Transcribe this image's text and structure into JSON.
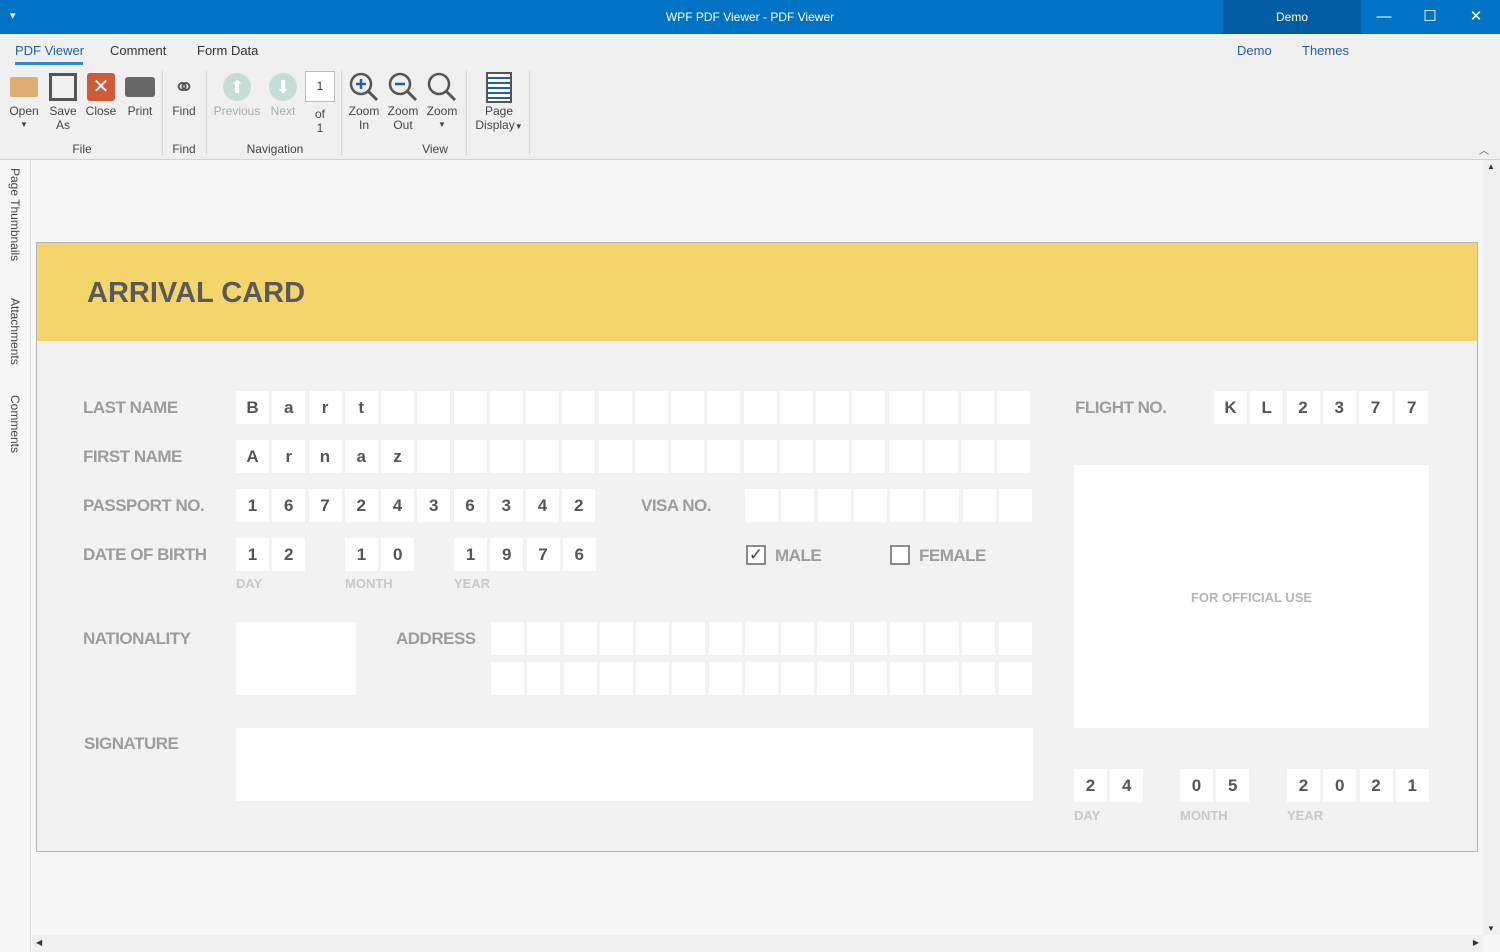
{
  "window": {
    "title": "WPF PDF Viewer - PDF Viewer",
    "badge": "Demo",
    "minimize": "—",
    "maximize": "☐",
    "close": "✕",
    "menu_glyph": "▾"
  },
  "ribbon": {
    "tabs": [
      {
        "label": "PDF Viewer",
        "active": true
      },
      {
        "label": "Comment"
      },
      {
        "label": "Form Data"
      }
    ],
    "right_links": [
      "Demo",
      "Themes"
    ],
    "buttons": {
      "open": "Open",
      "save_as_1": "Save",
      "save_as_2": "As",
      "close": "Close",
      "print": "Print",
      "find": "Find",
      "previous": "Previous",
      "next": "Next",
      "page_value": "1",
      "of_1": "of",
      "of_2": "1",
      "zoom_in_1": "Zoom",
      "zoom_in_2": "In",
      "zoom_out_1": "Zoom",
      "zoom_out_2": "Out",
      "zoom": "Zoom",
      "page_display_1": "Page",
      "page_display_2": "Display"
    },
    "groups": {
      "file": "File",
      "find": "Find",
      "navigation": "Navigation",
      "view": "View"
    }
  },
  "sidebar": {
    "tabs": [
      "Page Thumbnails",
      "Attachments",
      "Comments"
    ]
  },
  "form": {
    "title": "ARRIVAL CARD",
    "labels": {
      "last_name": "LAST NAME",
      "first_name": "FIRST NAME",
      "passport": "PASSPORT NO.",
      "visa": "VISA NO.",
      "dob": "DATE OF BIRTH",
      "male": "MALE",
      "female": "FEMALE",
      "nationality": "NATIONALITY",
      "address": "ADDRESS",
      "signature": "SIGNATURE",
      "flight": "FLIGHT NO.",
      "official": "FOR OFFICIAL USE",
      "day": "DAY",
      "month": "MONTH",
      "year": "YEAR"
    },
    "last_name": [
      "B",
      "a",
      "r",
      "t",
      "",
      "",
      "",
      "",
      "",
      "",
      "",
      "",
      "",
      "",
      "",
      "",
      "",
      "",
      "",
      "",
      "",
      ""
    ],
    "first_name": [
      "A",
      "r",
      "n",
      "a",
      "z",
      "",
      "",
      "",
      "",
      "",
      "",
      "",
      "",
      "",
      "",
      "",
      "",
      "",
      "",
      "",
      "",
      ""
    ],
    "passport": [
      "1",
      "6",
      "7",
      "2",
      "4",
      "3",
      "6",
      "3",
      "4",
      "2"
    ],
    "visa": [
      "",
      "",
      "",
      "",
      "",
      "",
      "",
      ""
    ],
    "dob": {
      "day": [
        "1",
        "2"
      ],
      "month": [
        "1",
        "0"
      ],
      "year": [
        "1",
        "9",
        "7",
        "6"
      ]
    },
    "gender": {
      "male": true,
      "female": false
    },
    "nationality": "",
    "address_line1": [
      "",
      "",
      "",
      "",
      "",
      "",
      "",
      "",
      "",
      "",
      "",
      "",
      "",
      "",
      ""
    ],
    "address_line2": [
      "",
      "",
      "",
      "",
      "",
      "",
      "",
      "",
      "",
      "",
      "",
      "",
      "",
      "",
      ""
    ],
    "signature": "",
    "flight": [
      "K",
      "L",
      "2",
      "3",
      "7",
      "7"
    ],
    "official_date": {
      "day": [
        "2",
        "4"
      ],
      "month": [
        "0",
        "5"
      ],
      "year": [
        "2",
        "0",
        "2",
        "1"
      ]
    }
  }
}
